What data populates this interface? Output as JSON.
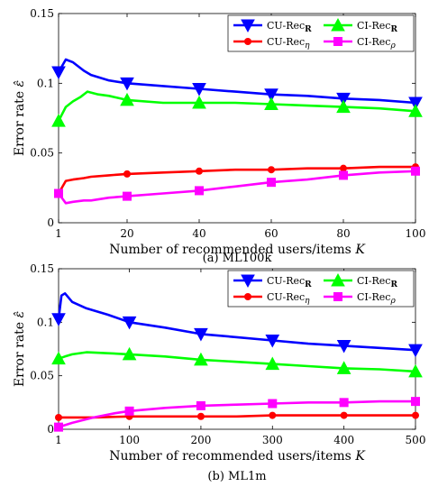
{
  "charts": [
    {
      "caption": "(a)  ML100k",
      "xlabel": "Number of recommended users/items",
      "xlabel_var": "K",
      "ylabel": "Error rate",
      "ylabel_var": "ε̂",
      "xticks": [
        "1",
        "20",
        "40",
        "60",
        "80",
        "100"
      ],
      "yticks": [
        "0",
        "0.05",
        "0.1",
        "0.15"
      ]
    },
    {
      "caption": "(b)  ML1m",
      "xlabel": "Number of recommended users/items",
      "xlabel_var": "K",
      "ylabel": "Error rate",
      "ylabel_var": "ε̂",
      "xticks": [
        "1",
        "100",
        "200",
        "300",
        "400",
        "500"
      ],
      "yticks": [
        "0",
        "0.05",
        "0.1",
        "0.15"
      ]
    }
  ],
  "legend": [
    {
      "base": "CU-Rec",
      "sub": "R",
      "bold": true,
      "color": "#0000ff",
      "marker": "triangle-down"
    },
    {
      "base": "CI-Rec",
      "sub": "R",
      "bold": true,
      "color": "#00ff00",
      "marker": "triangle-up"
    },
    {
      "base": "CU-Rec",
      "sub": "η",
      "bold": false,
      "color": "#ff0000",
      "marker": "circle"
    },
    {
      "base": "CI-Rec",
      "sub": "ρ",
      "bold": false,
      "color": "#ff00ff",
      "marker": "square"
    }
  ],
  "chart_data": [
    {
      "type": "line",
      "title": "",
      "xlabel": "Number of recommended users/items K",
      "ylabel": "Error rate ε̂",
      "xlim": [
        1,
        100
      ],
      "ylim": [
        0,
        0.15
      ],
      "grid": false,
      "legend_position": "top-right",
      "series": [
        {
          "name": "CU-Rec_R",
          "color": "#0000ff",
          "marker": "triangle-down",
          "x": [
            1,
            3,
            5,
            8,
            10,
            15,
            20,
            30,
            40,
            50,
            60,
            70,
            80,
            90,
            100
          ],
          "y": [
            0.108,
            0.117,
            0.115,
            0.109,
            0.106,
            0.102,
            0.1,
            0.098,
            0.096,
            0.094,
            0.092,
            0.091,
            0.089,
            0.088,
            0.086
          ],
          "markers_at": [
            1,
            20,
            40,
            60,
            80,
            100
          ]
        },
        {
          "name": "CI-Rec_R",
          "color": "#00ff00",
          "marker": "triangle-up",
          "x": [
            1,
            3,
            5,
            7,
            9,
            12,
            15,
            20,
            30,
            40,
            50,
            60,
            70,
            80,
            90,
            100
          ],
          "y": [
            0.073,
            0.083,
            0.087,
            0.09,
            0.094,
            0.092,
            0.091,
            0.088,
            0.086,
            0.086,
            0.086,
            0.085,
            0.084,
            0.083,
            0.082,
            0.08
          ],
          "markers_at": [
            1,
            20,
            40,
            60,
            80,
            100
          ]
        },
        {
          "name": "CU-Rec_η",
          "color": "#ff0000",
          "marker": "circle",
          "x": [
            1,
            3,
            5,
            8,
            10,
            15,
            20,
            30,
            40,
            50,
            60,
            70,
            80,
            90,
            100
          ],
          "y": [
            0.021,
            0.03,
            0.031,
            0.032,
            0.033,
            0.034,
            0.035,
            0.036,
            0.037,
            0.038,
            0.038,
            0.039,
            0.039,
            0.04,
            0.04
          ],
          "markers_at": [
            1,
            20,
            40,
            60,
            80,
            100
          ]
        },
        {
          "name": "CI-Rec_ρ",
          "color": "#ff00ff",
          "marker": "square",
          "x": [
            1,
            3,
            5,
            8,
            10,
            15,
            20,
            30,
            40,
            50,
            60,
            70,
            80,
            90,
            100
          ],
          "y": [
            0.021,
            0.014,
            0.015,
            0.016,
            0.016,
            0.018,
            0.019,
            0.021,
            0.023,
            0.026,
            0.029,
            0.031,
            0.034,
            0.036,
            0.037
          ],
          "markers_at": [
            1,
            20,
            40,
            60,
            80,
            100
          ]
        }
      ]
    },
    {
      "type": "line",
      "title": "",
      "xlabel": "Number of recommended users/items K",
      "ylabel": "Error rate ε̂",
      "xlim": [
        1,
        500
      ],
      "ylim": [
        0,
        0.15
      ],
      "grid": false,
      "legend_position": "top-right",
      "series": [
        {
          "name": "CU-Rec_R",
          "color": "#0000ff",
          "marker": "triangle-down",
          "x": [
            1,
            5,
            10,
            20,
            40,
            70,
            100,
            150,
            200,
            250,
            300,
            350,
            400,
            450,
            500
          ],
          "y": [
            0.103,
            0.125,
            0.127,
            0.119,
            0.113,
            0.107,
            0.1,
            0.095,
            0.089,
            0.086,
            0.083,
            0.08,
            0.078,
            0.076,
            0.074
          ],
          "markers_at": [
            1,
            100,
            200,
            300,
            400,
            500
          ]
        },
        {
          "name": "CI-Rec_R",
          "color": "#00ff00",
          "marker": "triangle-up",
          "x": [
            1,
            10,
            20,
            40,
            70,
            100,
            150,
            200,
            250,
            300,
            350,
            400,
            450,
            500
          ],
          "y": [
            0.066,
            0.068,
            0.07,
            0.072,
            0.071,
            0.07,
            0.068,
            0.065,
            0.063,
            0.061,
            0.059,
            0.057,
            0.056,
            0.054
          ],
          "markers_at": [
            1,
            100,
            200,
            300,
            400,
            500
          ]
        },
        {
          "name": "CU-Rec_η",
          "color": "#ff0000",
          "marker": "circle",
          "x": [
            1,
            50,
            100,
            150,
            200,
            250,
            300,
            350,
            400,
            450,
            500
          ],
          "y": [
            0.011,
            0.011,
            0.012,
            0.012,
            0.012,
            0.012,
            0.013,
            0.013,
            0.013,
            0.013,
            0.013
          ],
          "markers_at": [
            1,
            100,
            200,
            300,
            400,
            500
          ]
        },
        {
          "name": "CI-Rec_ρ",
          "color": "#ff00ff",
          "marker": "square",
          "x": [
            1,
            20,
            50,
            80,
            100,
            150,
            200,
            250,
            300,
            350,
            400,
            450,
            500
          ],
          "y": [
            0.002,
            0.006,
            0.011,
            0.015,
            0.017,
            0.02,
            0.022,
            0.023,
            0.024,
            0.025,
            0.025,
            0.026,
            0.026
          ],
          "markers_at": [
            1,
            100,
            200,
            300,
            400,
            500
          ]
        }
      ]
    }
  ]
}
